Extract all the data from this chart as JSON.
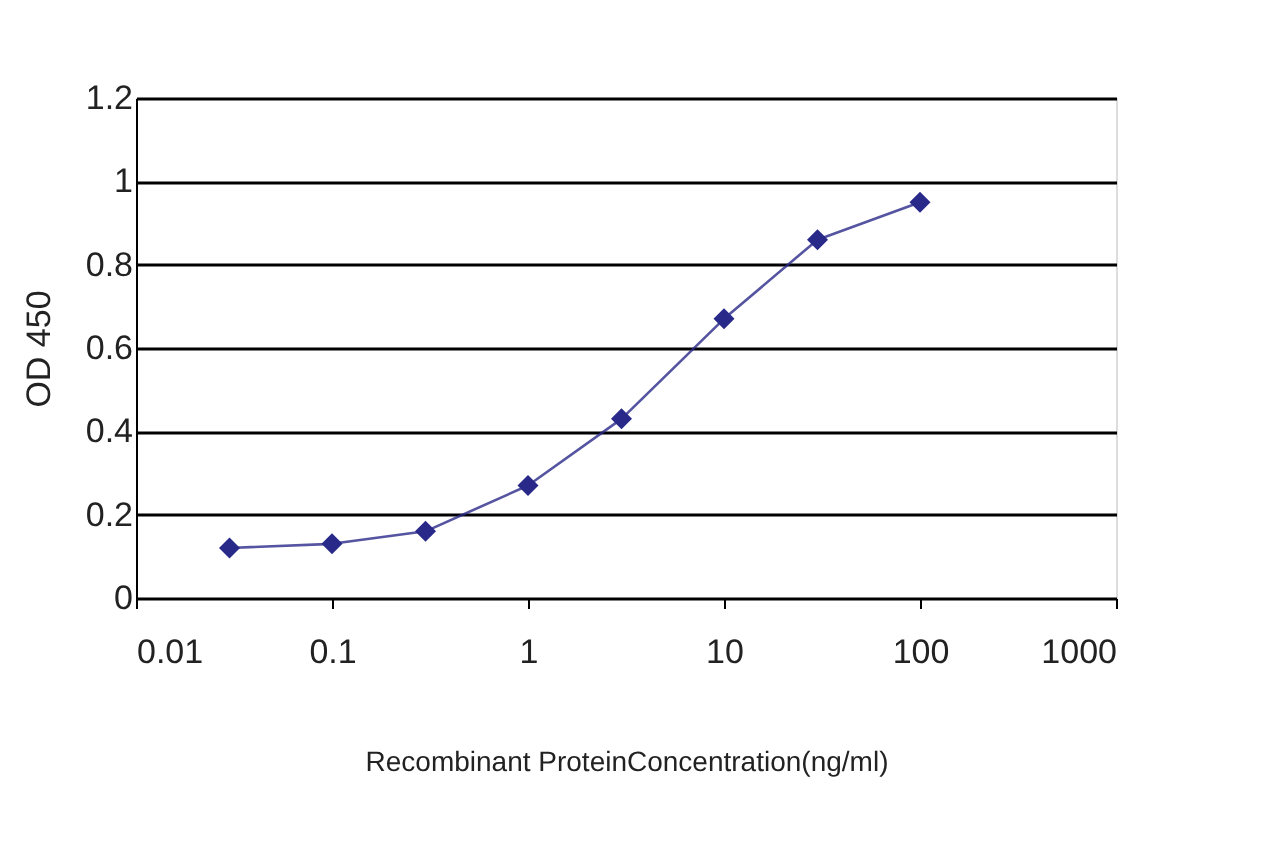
{
  "chart_data": {
    "type": "line",
    "xlabel": "Recombinant ProteinConcentration(ng/ml)",
    "ylabel": "OD 450",
    "x": [
      0.03,
      0.1,
      0.3,
      1,
      3,
      10,
      30,
      100
    ],
    "series": [
      {
        "color": "#29298a",
        "values": [
          0.12,
          0.13,
          0.16,
          0.27,
          0.43,
          0.67,
          0.86,
          0.95
        ]
      }
    ],
    "log": "x",
    "xlim": [
      0.01,
      1000
    ],
    "xticks": [
      0.01,
      0.1,
      1,
      10,
      100,
      1000
    ],
    "ylim": [
      0,
      1.2
    ],
    "yticks": [
      0,
      0.2,
      0.4,
      0.6,
      0.8,
      1,
      1.2
    ],
    "grid": "y",
    "marker": "diamond",
    "line_style": "solid"
  }
}
